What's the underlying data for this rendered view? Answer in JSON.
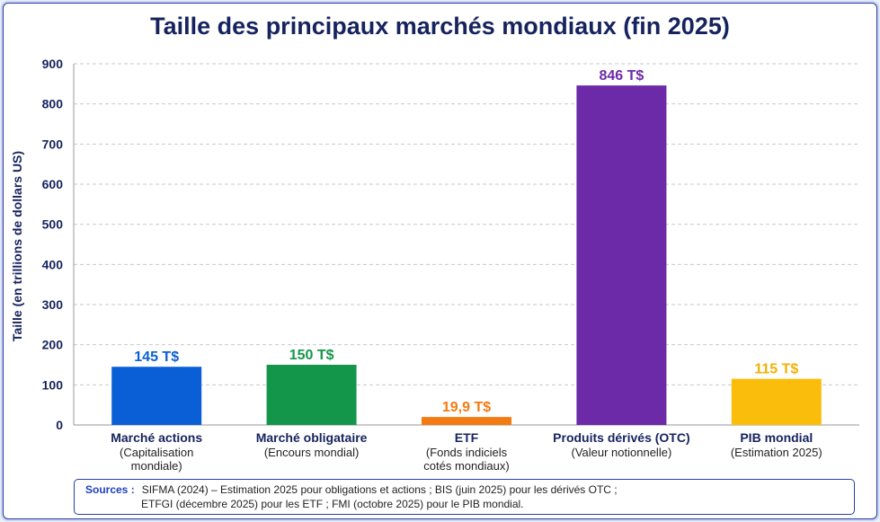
{
  "chart_data": {
    "type": "bar",
    "title": "Taille des principaux marchés mondiaux (fin 2025)",
    "ylabel": "Taille (en trillions de dollars US)",
    "xlabel": "",
    "ylim": [
      0,
      900
    ],
    "yticks": [
      0,
      100,
      200,
      300,
      400,
      500,
      600,
      700,
      800,
      900
    ],
    "grid": true,
    "categories": [
      {
        "label": "Marché actions",
        "sub": [
          "(Capitalisation",
          "mondiale)"
        ],
        "value": 145,
        "value_label": "145 T$",
        "color": "#0a5fd6",
        "label_color": "#0a5fd6"
      },
      {
        "label": "Marché obligataire",
        "sub": [
          "(Encours mondial)"
        ],
        "value": 150,
        "value_label": "150 T$",
        "color": "#14964a",
        "label_color": "#14964a"
      },
      {
        "label": "ETF",
        "sub": [
          "(Fonds indiciels",
          "cotés mondiaux)"
        ],
        "value": 19.9,
        "value_label": "19,9 T$",
        "color": "#f47a12",
        "label_color": "#f47a12"
      },
      {
        "label": "Produits dérivés (OTC)",
        "sub": [
          "(Valeur notionnelle)"
        ],
        "value": 846,
        "value_label": "846 T$",
        "color": "#6d2aa8",
        "label_color": "#6d2aa8"
      },
      {
        "label": "PIB mondial",
        "sub": [
          "(Estimation 2025)"
        ],
        "value": 115,
        "value_label": "115 T$",
        "color": "#fbbd0c",
        "label_color": "#f3b000"
      }
    ]
  },
  "sources": {
    "label": "Sources :",
    "line1": "SIFMA (2024) – Estimation 2025 pour obligations et actions ; BIS (juin 2025) pour les dérivés OTC ;",
    "line2": "ETFGI (décembre 2025) pour les ETF ; FMI (octobre 2025) pour le PIB mondial."
  }
}
